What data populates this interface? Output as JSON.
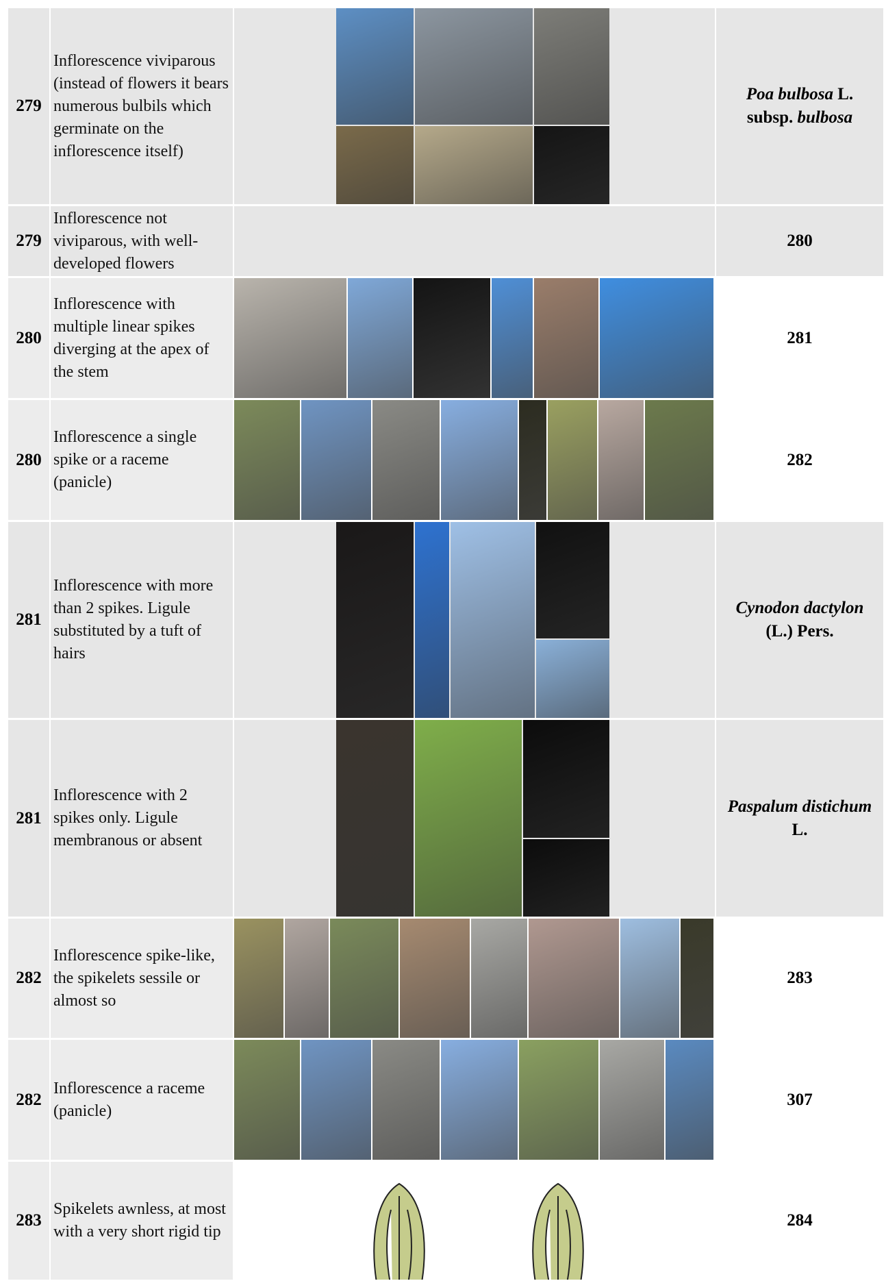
{
  "rows": [
    {
      "number": "279",
      "description": "Inflorescence viviparous (instead of flowers it bears numerous bulbils which germinate on the inflorescence itself)",
      "result": [
        {
          "text": "Poa bulbosa",
          "italic": true
        },
        {
          "text": " L. subsp. ",
          "italic": false
        },
        {
          "text": "bulbosa",
          "italic": true
        }
      ]
    },
    {
      "number": "279",
      "description": "Inflorescence not viviparous, with well-developed flowers",
      "result": [
        {
          "text": "280",
          "italic": false
        }
      ]
    },
    {
      "number": "280",
      "description": "Inflorescence with multiple linear spikes diverging at the apex of the stem",
      "result": [
        {
          "text": "281",
          "italic": false
        }
      ]
    },
    {
      "number": "280",
      "description": "Inflorescence a single spike or a raceme (panicle)",
      "result": [
        {
          "text": "282",
          "italic": false
        }
      ]
    },
    {
      "number": "281",
      "description": "Inflorescence with more than 2 spikes. Ligule substituted by a tuft of hairs",
      "result": [
        {
          "text": "Cynodon dactylon",
          "italic": true
        },
        {
          "text": " (L.) Pers.",
          "italic": false
        }
      ]
    },
    {
      "number": "281",
      "description": "Inflorescence with 2 spikes only. Ligule membranous or absent",
      "result": [
        {
          "text": "Paspalum distichum",
          "italic": true
        },
        {
          "text": " L.",
          "italic": false
        }
      ]
    },
    {
      "number": "282",
      "description": "Inflorescence spike-like, the spikelets sessile or almost so",
      "result": [
        {
          "text": "283",
          "italic": false
        }
      ]
    },
    {
      "number": "282",
      "description": "Inflorescence a raceme (panicle)",
      "result": [
        {
          "text": "307",
          "italic": false
        }
      ]
    },
    {
      "number": "283",
      "description": "Spikelets awnless, at most with a very short rigid tip",
      "result": [
        {
          "text": "284",
          "italic": false
        }
      ]
    }
  ]
}
